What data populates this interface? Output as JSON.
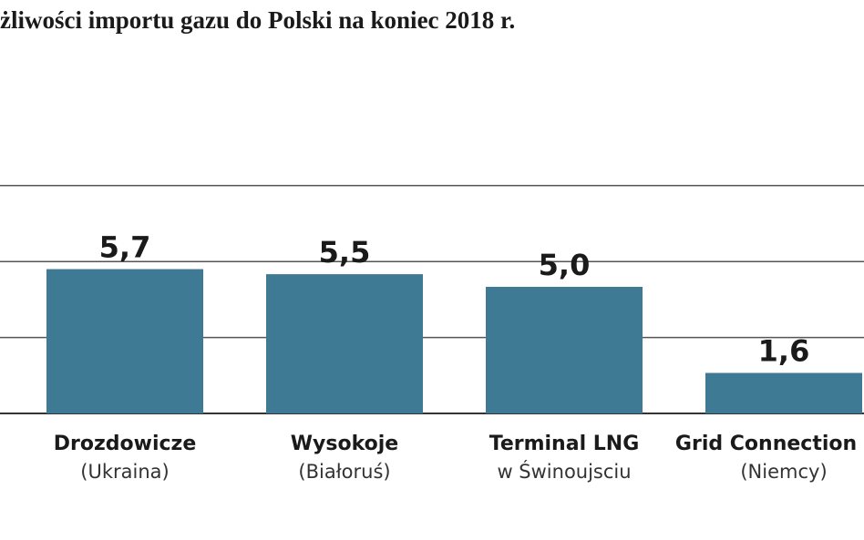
{
  "chart_data": {
    "type": "bar",
    "title": "żliwości importu gazu do Polski na koniec 2018 r.",
    "categories": [
      {
        "name": "Drozdowicze",
        "sub": "(Ukraina)"
      },
      {
        "name": "Wysokoje",
        "sub": "(Białoruś)"
      },
      {
        "name": "Terminal LNG",
        "sub": "w Świnoujsciu"
      },
      {
        "name": "Grid Connection Po",
        "sub": "(Niemcy)"
      }
    ],
    "values": [
      5.7,
      5.5,
      5.0,
      1.6
    ],
    "value_labels": [
      "5,7",
      "5,5",
      "5,0",
      "1,6"
    ],
    "ylim": [
      0,
      10
    ],
    "gridlines": [
      3,
      6,
      9
    ],
    "grid": true,
    "xlabel": "",
    "ylabel": "",
    "bar_color": "#3f7a95"
  }
}
